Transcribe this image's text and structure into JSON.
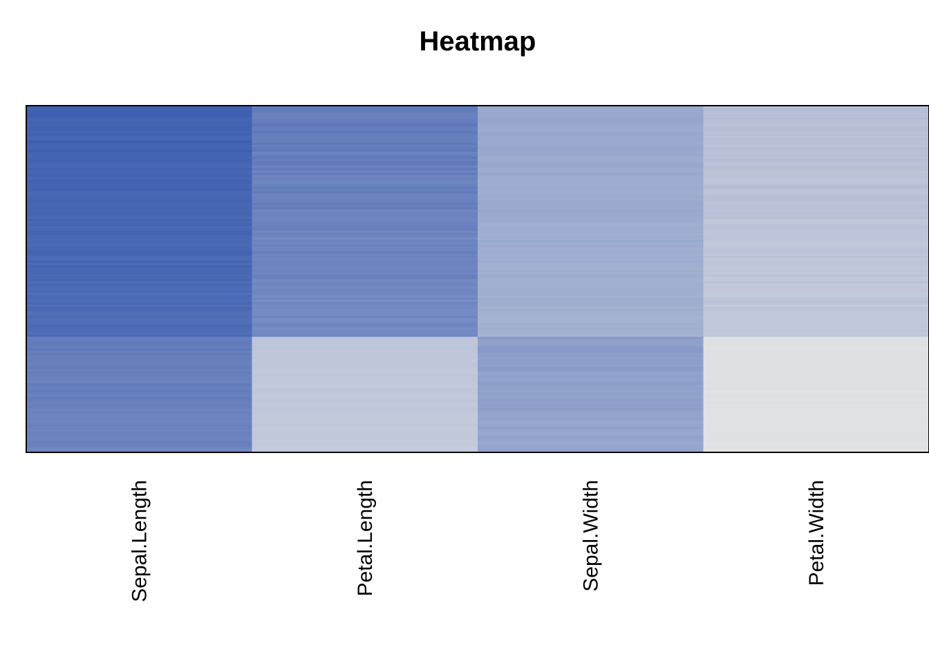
{
  "chart_data": {
    "type": "heatmap",
    "title": "Heatmap",
    "columns": [
      "Sepal.Length",
      "Petal.Length",
      "Sepal.Width",
      "Petal.Width"
    ],
    "rows": 150,
    "color_low": "#e6e6e6",
    "color_high": "#1c44a6",
    "value_range": [
      0,
      8
    ],
    "row_groups": [
      {
        "rows": 100,
        "values": [
          6.3,
          4.9,
          2.9,
          1.7
        ],
        "jitter": [
          0.45,
          0.6,
          0.35,
          0.35
        ]
      },
      {
        "rows": 50,
        "values": [
          5.0,
          1.5,
          3.4,
          0.25
        ],
        "jitter": [
          0.35,
          0.17,
          0.38,
          0.1
        ]
      }
    ],
    "legend": false,
    "grid": false
  }
}
